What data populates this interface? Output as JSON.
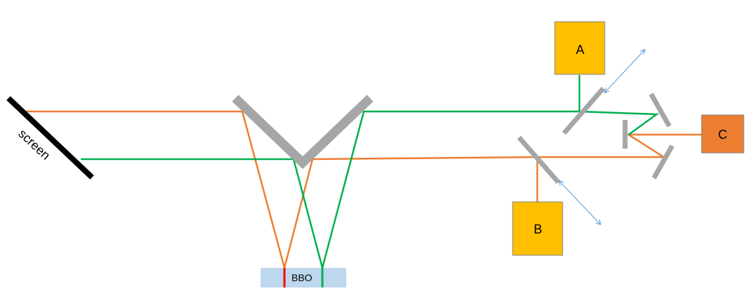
{
  "colors": {
    "orange_beam": "#ED7D31",
    "green_beam": "#00B050",
    "mirror": "#A6A6A6",
    "screen": "#000000",
    "box_a_b": "#FFC000",
    "box_c": "#ED7D31",
    "box_border": "#7F7F7F",
    "bbo_fill": "#BDD7EE",
    "bbo_red_mark": "#FF0000",
    "arrow": "#5B9BD5"
  },
  "labels": {
    "screen": "screen",
    "a": "A",
    "b": "B",
    "c": "C",
    "bbo": "BBO"
  }
}
